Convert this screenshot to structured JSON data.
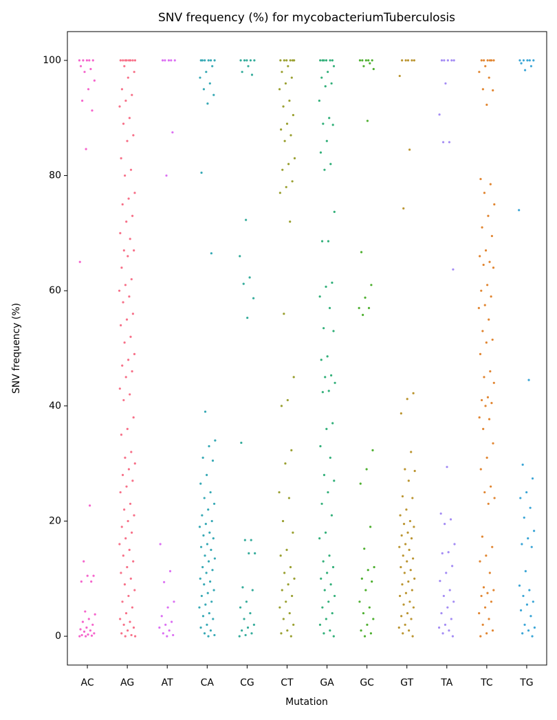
{
  "chart_data": {
    "type": "strip",
    "title": "SNV frequency (%) for mycobacteriumTuberculosis",
    "x_label": "Mutation",
    "y_label": "SNV frequency (%)",
    "categories": [
      "AC",
      "AG",
      "AT",
      "CA",
      "CG",
      "CT",
      "GA",
      "GC",
      "GT",
      "TA",
      "TC",
      "TG"
    ],
    "colors": [
      "#f565cc",
      "#f77189",
      "#dc70f3",
      "#37a9b5",
      "#35ac9b",
      "#9aa031",
      "#33b07a",
      "#4fb031",
      "#bb9531",
      "#a48cf4",
      "#e18632",
      "#3aa5d6"
    ],
    "values": [
      [
        100,
        100,
        100,
        100,
        100,
        99,
        98.5,
        98,
        96.5,
        95,
        93,
        91.3,
        84.6,
        65,
        22.7,
        13,
        10.5,
        10.5,
        9.5,
        9.5,
        4.3,
        3.8,
        3,
        2.5,
        2,
        1.5,
        1.2,
        1,
        0.8,
        0.5,
        0.3,
        0.2,
        0.1,
        0,
        0
      ],
      [
        100,
        100,
        100,
        100,
        100,
        100,
        100,
        100,
        99,
        98,
        97,
        95,
        94,
        93,
        92,
        90,
        89,
        87,
        86,
        83,
        81,
        80,
        77,
        76,
        75,
        73,
        72,
        70,
        69,
        67,
        67,
        66,
        64,
        62,
        61,
        60,
        59,
        58,
        56,
        55,
        54,
        52,
        51,
        49,
        48,
        47,
        46,
        45,
        43,
        42,
        41,
        38,
        36,
        35,
        32,
        31,
        30,
        29,
        28,
        27,
        26,
        25,
        23,
        22,
        21,
        20,
        19,
        18,
        17,
        16,
        15,
        14,
        13,
        12,
        11,
        10,
        9,
        8,
        7,
        6,
        5,
        4,
        3,
        2.5,
        2,
        1.5,
        1,
        0.5,
        0.2,
        0,
        0
      ],
      [
        100,
        100,
        100,
        100,
        100,
        87.5,
        80,
        16,
        11.3,
        9.4,
        6,
        5,
        3.5,
        2.5,
        2,
        1.5,
        1,
        0.5,
        0.2,
        0
      ],
      [
        100,
        100,
        100,
        100,
        100,
        100,
        99,
        98,
        97,
        96,
        95,
        94,
        92.5,
        80.5,
        66.5,
        39,
        34,
        33,
        31,
        30.5,
        28,
        26.5,
        25,
        24,
        23,
        22,
        21,
        20,
        19.5,
        19,
        18,
        17.5,
        17,
        16,
        15.5,
        15,
        14,
        13.5,
        13,
        12,
        11.5,
        11,
        10,
        9.5,
        9,
        8,
        7.5,
        7,
        6,
        5.5,
        5,
        4,
        3.5,
        3,
        2,
        1.5,
        1,
        0.5,
        0.2,
        0
      ],
      [
        100,
        100,
        100,
        100,
        100,
        99,
        98,
        97.5,
        72.3,
        66,
        62.3,
        61.2,
        58.7,
        55.3,
        33.6,
        16.7,
        16.7,
        14.4,
        14.4,
        8.5,
        8,
        6,
        5,
        4,
        3,
        2,
        1.5,
        1,
        0.5,
        0.2,
        0
      ],
      [
        100,
        100,
        100,
        100,
        100,
        100,
        99,
        98,
        97,
        96,
        95,
        93,
        92,
        90.5,
        89,
        88,
        87,
        86,
        83,
        82,
        81,
        79,
        78,
        77,
        72,
        56,
        45,
        41,
        40,
        32.3,
        30,
        25,
        24,
        20,
        18,
        15,
        14,
        12,
        11,
        10,
        9,
        8,
        7,
        6,
        5,
        4,
        3,
        2,
        1,
        0.5,
        0
      ],
      [
        100,
        100,
        100,
        100,
        100,
        100,
        99,
        98,
        97,
        96,
        95.5,
        93,
        90,
        89,
        88.8,
        86,
        84,
        82,
        81,
        73.7,
        68.6,
        68.6,
        61.4,
        60.7,
        59,
        57,
        53.5,
        53,
        48.6,
        48,
        45.3,
        45,
        44,
        42.6,
        42.4,
        37,
        36,
        33,
        31,
        28,
        27,
        25,
        23,
        21,
        18,
        17,
        14,
        13,
        12,
        11,
        10,
        9,
        8,
        7,
        6,
        5,
        4,
        3,
        2,
        1,
        0.5,
        0
      ],
      [
        100,
        100,
        100,
        100,
        100,
        99.5,
        99,
        98.5,
        89.5,
        66.7,
        61,
        58.8,
        57,
        57,
        55.8,
        32.3,
        29,
        26.5,
        19,
        15.2,
        12,
        11.5,
        10,
        9.5,
        8,
        6,
        5,
        4,
        3,
        2,
        1,
        0.5,
        0
      ],
      [
        100,
        100,
        100,
        100,
        100,
        97.3,
        84.5,
        74.3,
        42.2,
        41.2,
        38.7,
        32,
        29,
        28.7,
        27,
        24.3,
        24,
        22,
        21,
        20,
        19.5,
        19,
        18,
        17.5,
        17,
        16,
        15.5,
        15,
        14,
        13.5,
        13,
        12,
        11.5,
        11,
        10,
        9.5,
        9,
        8,
        7.5,
        7,
        6,
        5.5,
        5,
        4,
        3.5,
        3,
        2,
        1.5,
        1,
        0.5,
        0
      ],
      [
        100,
        100,
        100,
        100,
        100,
        96,
        90.6,
        85.8,
        85.8,
        63.7,
        29.4,
        21.3,
        20.3,
        19.5,
        16,
        14.6,
        14.4,
        12.2,
        11,
        9.6,
        8,
        7,
        6,
        5,
        4,
        3,
        2,
        1.5,
        1,
        0.5,
        0
      ],
      [
        100,
        100,
        100,
        100,
        100,
        100,
        99,
        98,
        97,
        95,
        94.8,
        92.3,
        79.4,
        78.5,
        77,
        75,
        73,
        71,
        69.5,
        67,
        66,
        65,
        64.5,
        64,
        61,
        60,
        59,
        57.5,
        57,
        55,
        53,
        51.5,
        51,
        49,
        46,
        45,
        44,
        41.5,
        41,
        40.5,
        40,
        38,
        37.7,
        36,
        33.5,
        31,
        29,
        26,
        25,
        24,
        23,
        17.3,
        15.5,
        14,
        13,
        11,
        8.5,
        8,
        7.5,
        7,
        6,
        5,
        4,
        3,
        2,
        1,
        0.5,
        0
      ],
      [
        100,
        100,
        100,
        100,
        100,
        99.5,
        99,
        98.3,
        74,
        44.5,
        29.8,
        27.4,
        25,
        24,
        22.3,
        20.6,
        18.3,
        17,
        16,
        15.5,
        11.3,
        8.8,
        8,
        7,
        6,
        5.5,
        4.5,
        3.5,
        2,
        1.5,
        1,
        0.5,
        0
      ]
    ],
    "ylim": [
      -5,
      105
    ],
    "yticks": [
      0,
      20,
      40,
      60,
      80,
      100
    ]
  }
}
